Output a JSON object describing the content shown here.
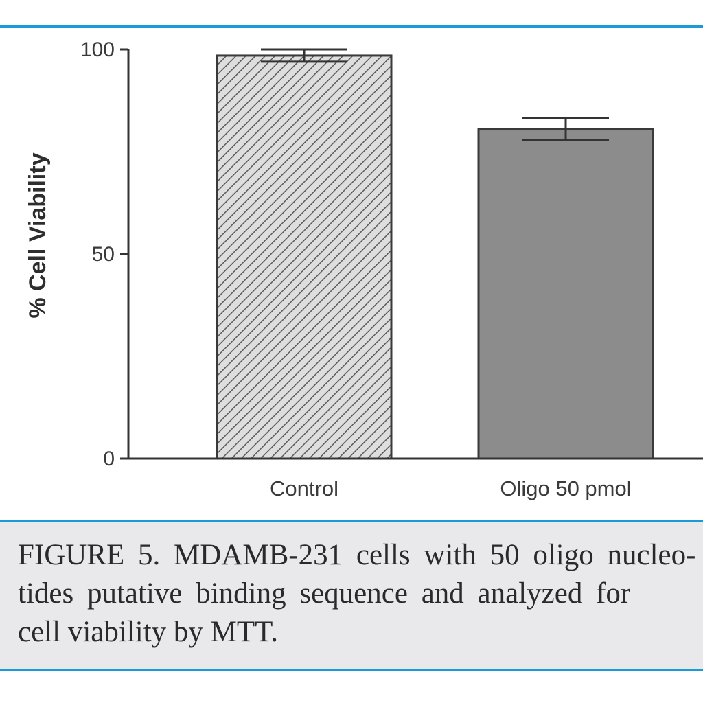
{
  "chart_data": {
    "type": "bar",
    "categories": [
      "Control",
      "Oligo 50 pmol"
    ],
    "values": [
      98.5,
      80.5
    ],
    "error": [
      1.5,
      2.7
    ],
    "ylabel": "% Cell Viability",
    "xlabel": "",
    "ylim": [
      0,
      100
    ],
    "yticks": [
      0,
      50,
      100
    ],
    "grid": false,
    "bar_styles": [
      "hatched",
      "solid"
    ],
    "colors": {
      "control_fill": "#d9d9d9",
      "oligo_fill": "#8c8c8c",
      "bar_edge": "#3a3a3a",
      "axis": "#333333"
    }
  },
  "caption": {
    "lines": [
      "FIGURE 5. MDAMB-231 cells with 50 oligo nucleo-",
      "tides putative binding sequence and analyzed for",
      "cell viability by MTT."
    ]
  },
  "colors": {
    "rule": "#1a9ad6",
    "caption_background": "#e9e9ec"
  }
}
